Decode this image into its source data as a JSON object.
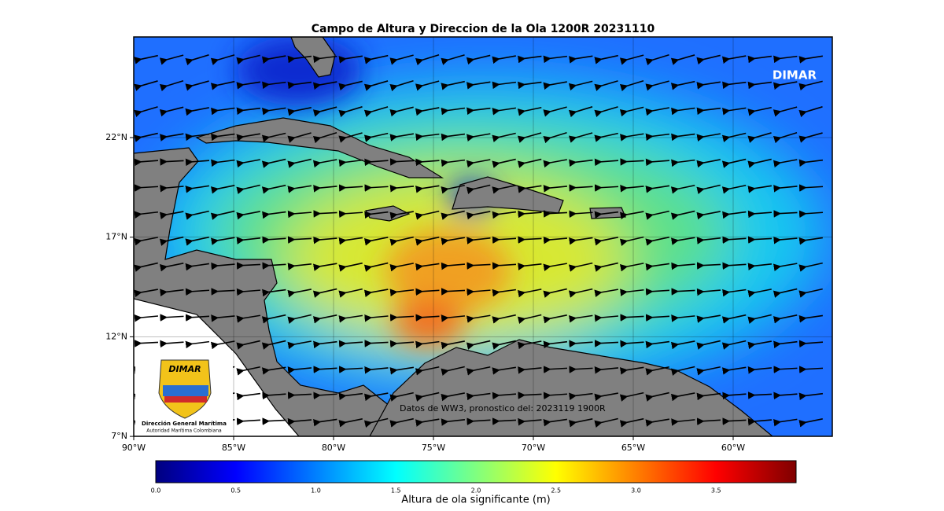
{
  "title": "Campo de Altura y Direccion de la Ola 1200R 20231110",
  "map": {
    "lat_labels": [
      "22°N",
      "17°N",
      "12°N",
      "7°N"
    ],
    "lon_labels": [
      "90°W",
      "85°W",
      "80°W",
      "75°W",
      "70°W",
      "65°W",
      "60°W"
    ],
    "watermark": "DIMAR",
    "annotation": "Datos de WW3, pronostico del: 2023119 1900R",
    "logo": {
      "brand": "DIMAR",
      "name": "Dirección General Marítima",
      "subtitle": "Autoridad Marítima Colombiana"
    }
  },
  "colorbar": {
    "label": "Altura de ola significante (m)",
    "ticks": [
      "0.0",
      "0.5",
      "1.0",
      "1.5",
      "2.0",
      "2.5",
      "3.0",
      "3.5"
    ]
  }
}
